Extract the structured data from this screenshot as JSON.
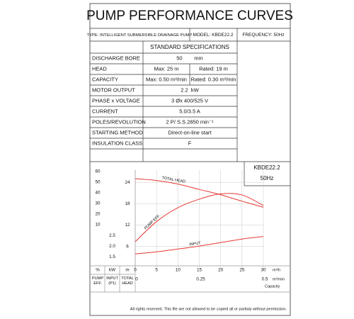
{
  "header": {
    "title": "PUMP PERFORMANCE CURVES",
    "type": "TYPE: INTELLIGENT SUBMERSIBLE  DRAINAGE  PUMP",
    "model": "MODEL: KBDE22.2",
    "frequency": "FREQUENCY: 50Hz"
  },
  "specs": {
    "heading": "STANDARD SPECIFICATIONS",
    "rows": [
      {
        "label": "DISCHARGE BORE",
        "values": [
          "50        mm"
        ]
      },
      {
        "label": "HEAD",
        "values": [
          "Max: 25 m",
          "Rated: 19 m"
        ]
      },
      {
        "label": "CAPACITY",
        "values": [
          "Max: 0.50 m³/min",
          "Rated: 0.30 m³/min"
        ]
      },
      {
        "label": "MOTOR OUTPUT",
        "values": [
          "2.2  kW"
        ]
      },
      {
        "label": "PHASE x VOLTAGE",
        "values": [
          "3 Øx 400/525 V"
        ]
      },
      {
        "label": "CURRENT",
        "values": [
          "5.0/3.5 A"
        ]
      },
      {
        "label": "POLES/REVOLUTION",
        "values": [
          "2 P/ S.S.2850 min⁻¹"
        ]
      },
      {
        "label": "STARTING METHOD",
        "values": [
          "Direct-on-line start"
        ]
      },
      {
        "label": "INSULATION CLASS",
        "values": [
          "F"
        ]
      }
    ]
  },
  "chart_data": {
    "type": "line",
    "title": "KBDE22.2",
    "subtitle": "50Hz",
    "x_unit": "m³/h",
    "x2_unit": "m³/min",
    "x_label": "Capacity",
    "xlim": [
      0,
      30
    ],
    "xticks": [
      0,
      5,
      10,
      15,
      20,
      25,
      30
    ],
    "x2lim": [
      0,
      0.5
    ],
    "x2ticks": [
      0,
      0.25,
      0.5
    ],
    "ylim": [
      0,
      27.4
    ],
    "yticks": [
      6,
      12,
      18,
      24
    ],
    "y_unit": "m",
    "y_label": "TOTAL HEAD",
    "y2lim": [
      -30.7,
      61.3
    ],
    "y2ticks": [
      60,
      50,
      40,
      30,
      20,
      10
    ],
    "y2_unit": "%",
    "y2_label": "PUMP EFF.",
    "y3lim": [
      0.97,
      5.57
    ],
    "y3ticks": [
      2.5,
      {
        "value": 2,
        "label": "2.0"
      },
      1.5
    ],
    "y3_unit": "kW",
    "y3_label": "INPUT (P1)",
    "grid": true,
    "series": [
      {
        "name": "TOTAL HEAD",
        "color": "#e53935",
        "axis": "y",
        "x": [
          0,
          5,
          10,
          15,
          20,
          25,
          30
        ],
        "values": [
          25,
          24.5,
          23.5,
          22,
          20.5,
          18.7,
          17
        ]
      },
      {
        "name": "PUMP EFF.",
        "color": "#e53935",
        "axis": "y2",
        "x": [
          0,
          5,
          10,
          15,
          20,
          25,
          30
        ],
        "values": [
          -6,
          13,
          26,
          34,
          39,
          38,
          28
        ]
      },
      {
        "name": "INPUT",
        "color": "#e53935",
        "axis": "y3",
        "x": [
          0,
          5,
          10,
          15,
          20,
          25,
          30
        ],
        "values": [
          1.63,
          1.73,
          1.86,
          2.0,
          2.16,
          2.33,
          2.45
        ]
      }
    ]
  },
  "footer": "All rights reserved. This file are not allowed to be copied all or partialy without permission."
}
